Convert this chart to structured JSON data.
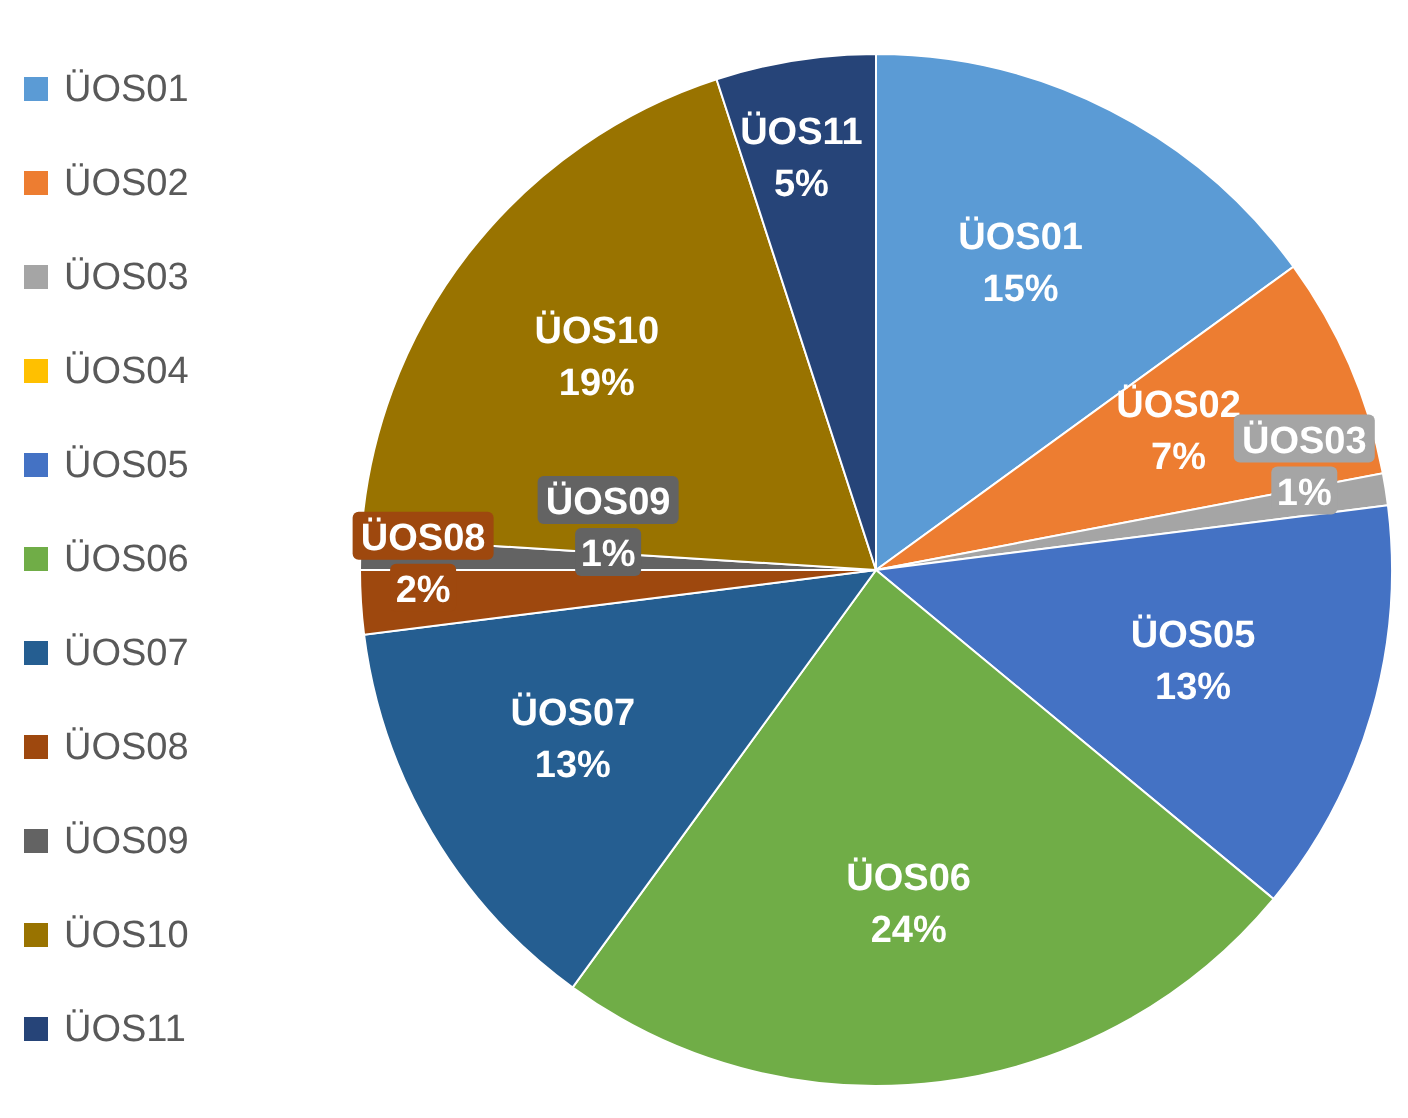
{
  "chart_data": {
    "type": "pie",
    "categories": [
      "ÜOS01",
      "ÜOS02",
      "ÜOS03",
      "ÜOS04",
      "ÜOS05",
      "ÜOS06",
      "ÜOS07",
      "ÜOS08",
      "ÜOS09",
      "ÜOS10",
      "ÜOS11"
    ],
    "values": [
      15,
      7,
      1,
      0,
      13,
      24,
      13,
      2,
      1,
      19,
      5
    ],
    "value_labels": [
      "15%",
      "7%",
      "1%",
      null,
      "13%",
      "24%",
      "13%",
      "2%",
      "1%",
      "19%",
      "5%"
    ],
    "colors": [
      "#5b9bd5",
      "#ed7d31",
      "#a5a5a5",
      "#ffc000",
      "#4472c4",
      "#70ad47",
      "#255e91",
      "#9e480e",
      "#636363",
      "#997300",
      "#264478"
    ],
    "legend": "left"
  }
}
